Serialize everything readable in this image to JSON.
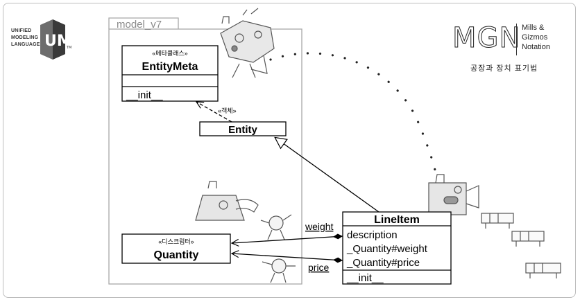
{
  "uml_logo": {
    "lines": [
      "UNIFIED",
      "MODELING",
      "LANGUAGE"
    ],
    "mark": "UML",
    "tm": "TM"
  },
  "mgn_logo": {
    "big": "MGN",
    "small_lines": [
      "Mills &",
      "Gizmos",
      "Notation"
    ],
    "korean": "공장과 장치 표기법"
  },
  "package": {
    "name": "model_v7"
  },
  "classes": {
    "entity_meta": {
      "stereotype": "«메타클래스»",
      "name": "EntityMeta",
      "method": "__init__"
    },
    "entity": {
      "name": "Entity"
    },
    "quantity": {
      "stereotype": "«디스크립터»",
      "name": "Quantity"
    },
    "line_item": {
      "name": "LineItem",
      "attributes": [
        "description",
        "_Quantity#weight",
        "_Quantity#price"
      ],
      "method": "__init__"
    }
  },
  "relations": {
    "instance_of": "«객체»",
    "weight": "weight",
    "price": "price"
  },
  "colors": {
    "line": "#000000",
    "package_border": "#a8a8a8",
    "doodle": "#555555"
  }
}
